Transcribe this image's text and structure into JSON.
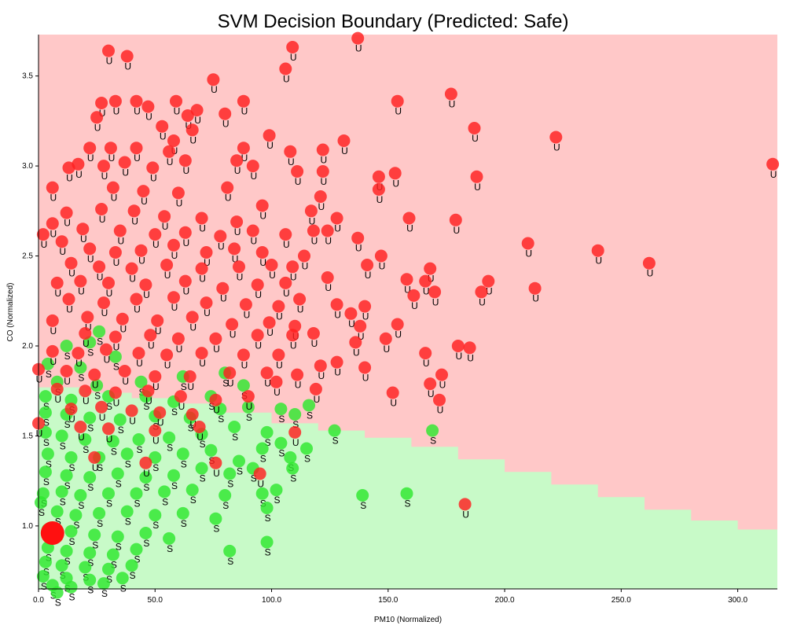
{
  "chart_data": {
    "type": "scatter",
    "title": "SVM Decision Boundary (Predicted: Safe)",
    "xlabel": "PM10 (Normalized)",
    "ylabel": "CO (Normalized)",
    "xlim": [
      0,
      317
    ],
    "ylim": [
      0.65,
      3.73
    ],
    "x_ticks": [
      "0.0",
      "50.0",
      "100.0",
      "150.0",
      "200.0",
      "250.0",
      "300.0"
    ],
    "x_tick_values": [
      0,
      50,
      100,
      150,
      200,
      250,
      300
    ],
    "y_ticks": [
      "1.0",
      "1.5",
      "2.0",
      "2.5",
      "3.0",
      "3.5"
    ],
    "y_tick_values": [
      1.0,
      1.5,
      2.0,
      2.5,
      3.0,
      3.5
    ],
    "grid": false,
    "regions": {
      "unsafe_color": "#ffc8c8",
      "safe_color": "#c8fac8",
      "boundary": [
        [
          0,
          1.77
        ],
        [
          20,
          1.74
        ],
        [
          40,
          1.71
        ],
        [
          60,
          1.68
        ],
        [
          80,
          1.63
        ],
        [
          100,
          1.57
        ],
        [
          120,
          1.53
        ],
        [
          140,
          1.49
        ],
        [
          160,
          1.44
        ],
        [
          180,
          1.37
        ],
        [
          200,
          1.3
        ],
        [
          220,
          1.23
        ],
        [
          240,
          1.16
        ],
        [
          260,
          1.09
        ],
        [
          280,
          1.03
        ],
        [
          300,
          0.98
        ],
        [
          317,
          0.98
        ]
      ]
    },
    "series": [
      {
        "label": "U",
        "color": "#ff2020",
        "points": [
          [
            137,
            3.71
          ],
          [
            30,
            3.64
          ],
          [
            38,
            3.61
          ],
          [
            109,
            3.66
          ],
          [
            106,
            3.54
          ],
          [
            75,
            3.48
          ],
          [
            59,
            3.36
          ],
          [
            42,
            3.36
          ],
          [
            27,
            3.35
          ],
          [
            33,
            3.36
          ],
          [
            88,
            3.36
          ],
          [
            47,
            3.33
          ],
          [
            68,
            3.31
          ],
          [
            80,
            3.29
          ],
          [
            25,
            3.27
          ],
          [
            64,
            3.28
          ],
          [
            53,
            3.22
          ],
          [
            66,
            3.2
          ],
          [
            58,
            3.14
          ],
          [
            99,
            3.17
          ],
          [
            131,
            3.14
          ],
          [
            177,
            3.4
          ],
          [
            154,
            3.36
          ],
          [
            187,
            3.21
          ],
          [
            222,
            3.16
          ],
          [
            22,
            3.1
          ],
          [
            31,
            3.1
          ],
          [
            42,
            3.1
          ],
          [
            56,
            3.08
          ],
          [
            108,
            3.08
          ],
          [
            122,
            3.09
          ],
          [
            88,
            3.1
          ],
          [
            13,
            2.99
          ],
          [
            17,
            3.01
          ],
          [
            28,
            3.0
          ],
          [
            37,
            3.02
          ],
          [
            49,
            2.99
          ],
          [
            63,
            3.03
          ],
          [
            85,
            3.03
          ],
          [
            92,
            3.0
          ],
          [
            111,
            2.97
          ],
          [
            122,
            2.97
          ],
          [
            146,
            2.94
          ],
          [
            153,
            2.96
          ],
          [
            188,
            2.94
          ],
          [
            315,
            3.01
          ],
          [
            6,
            2.88
          ],
          [
            32,
            2.88
          ],
          [
            45,
            2.86
          ],
          [
            60,
            2.85
          ],
          [
            81,
            2.88
          ],
          [
            96,
            2.78
          ],
          [
            121,
            2.83
          ],
          [
            146,
            2.87
          ],
          [
            12,
            2.74
          ],
          [
            27,
            2.76
          ],
          [
            41,
            2.75
          ],
          [
            54,
            2.72
          ],
          [
            70,
            2.71
          ],
          [
            85,
            2.69
          ],
          [
            117,
            2.75
          ],
          [
            128,
            2.71
          ],
          [
            159,
            2.71
          ],
          [
            179,
            2.7
          ],
          [
            6,
            2.68
          ],
          [
            19,
            2.65
          ],
          [
            35,
            2.64
          ],
          [
            50,
            2.62
          ],
          [
            63,
            2.63
          ],
          [
            78,
            2.61
          ],
          [
            92,
            2.64
          ],
          [
            106,
            2.62
          ],
          [
            118,
            2.64
          ],
          [
            124,
            2.64
          ],
          [
            137,
            2.6
          ],
          [
            2,
            2.62
          ],
          [
            10,
            2.58
          ],
          [
            22,
            2.54
          ],
          [
            33,
            2.52
          ],
          [
            44,
            2.53
          ],
          [
            58,
            2.56
          ],
          [
            72,
            2.52
          ],
          [
            84,
            2.54
          ],
          [
            96,
            2.52
          ],
          [
            114,
            2.5
          ],
          [
            147,
            2.5
          ],
          [
            210,
            2.57
          ],
          [
            240,
            2.53
          ],
          [
            262,
            2.46
          ],
          [
            14,
            2.46
          ],
          [
            26,
            2.44
          ],
          [
            40,
            2.43
          ],
          [
            55,
            2.45
          ],
          [
            70,
            2.43
          ],
          [
            86,
            2.44
          ],
          [
            100,
            2.45
          ],
          [
            109,
            2.44
          ],
          [
            141,
            2.45
          ],
          [
            168,
            2.43
          ],
          [
            8,
            2.35
          ],
          [
            18,
            2.36
          ],
          [
            30,
            2.35
          ],
          [
            46,
            2.34
          ],
          [
            63,
            2.36
          ],
          [
            79,
            2.32
          ],
          [
            94,
            2.34
          ],
          [
            106,
            2.35
          ],
          [
            124,
            2.38
          ],
          [
            158,
            2.37
          ],
          [
            166,
            2.36
          ],
          [
            193,
            2.36
          ],
          [
            13,
            2.26
          ],
          [
            28,
            2.24
          ],
          [
            42,
            2.26
          ],
          [
            58,
            2.27
          ],
          [
            72,
            2.24
          ],
          [
            89,
            2.23
          ],
          [
            103,
            2.22
          ],
          [
            112,
            2.26
          ],
          [
            128,
            2.23
          ],
          [
            161,
            2.28
          ],
          [
            170,
            2.3
          ],
          [
            190,
            2.3
          ],
          [
            213,
            2.32
          ],
          [
            6,
            2.14
          ],
          [
            21,
            2.16
          ],
          [
            36,
            2.15
          ],
          [
            51,
            2.14
          ],
          [
            66,
            2.16
          ],
          [
            83,
            2.12
          ],
          [
            99,
            2.13
          ],
          [
            110,
            2.11
          ],
          [
            134,
            2.18
          ],
          [
            140,
            2.22
          ],
          [
            154,
            2.12
          ],
          [
            20,
            2.07
          ],
          [
            33,
            2.05
          ],
          [
            48,
            2.06
          ],
          [
            60,
            2.04
          ],
          [
            76,
            2.04
          ],
          [
            94,
            2.06
          ],
          [
            109,
            2.06
          ],
          [
            118,
            2.07
          ],
          [
            138,
            2.11
          ],
          [
            149,
            2.04
          ],
          [
            6,
            1.97
          ],
          [
            17,
            1.96
          ],
          [
            29,
            1.98
          ],
          [
            43,
            1.96
          ],
          [
            55,
            1.95
          ],
          [
            70,
            1.96
          ],
          [
            88,
            1.95
          ],
          [
            103,
            1.95
          ],
          [
            128,
            1.91
          ],
          [
            136,
            2.02
          ],
          [
            166,
            1.96
          ],
          [
            180,
            2.0
          ],
          [
            185,
            1.99
          ],
          [
            0,
            1.87
          ],
          [
            12,
            1.86
          ],
          [
            24,
            1.84
          ],
          [
            37,
            1.86
          ],
          [
            50,
            1.83
          ],
          [
            65,
            1.83
          ],
          [
            82,
            1.85
          ],
          [
            98,
            1.85
          ],
          [
            111,
            1.84
          ],
          [
            121,
            1.89
          ],
          [
            140,
            1.88
          ],
          [
            173,
            1.84
          ],
          [
            8,
            1.76
          ],
          [
            20,
            1.75
          ],
          [
            33,
            1.74
          ],
          [
            47,
            1.75
          ],
          [
            61,
            1.72
          ],
          [
            76,
            1.7
          ],
          [
            90,
            1.72
          ],
          [
            102,
            1.8
          ],
          [
            119,
            1.76
          ],
          [
            152,
            1.74
          ],
          [
            168,
            1.79
          ],
          [
            172,
            1.7
          ],
          [
            14,
            1.65
          ],
          [
            27,
            1.66
          ],
          [
            40,
            1.64
          ],
          [
            52,
            1.63
          ],
          [
            66,
            1.62
          ],
          [
            0,
            1.57
          ],
          [
            18,
            1.55
          ],
          [
            30,
            1.54
          ],
          [
            50,
            1.53
          ],
          [
            69,
            1.55
          ],
          [
            110,
            1.52
          ],
          [
            24,
            1.38
          ],
          [
            46,
            1.35
          ],
          [
            76,
            1.35
          ],
          [
            95,
            1.29
          ],
          [
            183,
            1.12
          ]
        ]
      },
      {
        "label": "S",
        "color": "#2ee82e",
        "points": [
          [
            26,
            2.08
          ],
          [
            12,
            2.0
          ],
          [
            22,
            2.02
          ],
          [
            33,
            1.94
          ],
          [
            4,
            1.9
          ],
          [
            18,
            1.88
          ],
          [
            8,
            1.8
          ],
          [
            25,
            1.78
          ],
          [
            44,
            1.8
          ],
          [
            62,
            1.83
          ],
          [
            80,
            1.85
          ],
          [
            3,
            1.72
          ],
          [
            14,
            1.7
          ],
          [
            30,
            1.72
          ],
          [
            46,
            1.72
          ],
          [
            58,
            1.69
          ],
          [
            74,
            1.72
          ],
          [
            88,
            1.78
          ],
          [
            3,
            1.63
          ],
          [
            12,
            1.62
          ],
          [
            22,
            1.6
          ],
          [
            35,
            1.59
          ],
          [
            50,
            1.61
          ],
          [
            65,
            1.6
          ],
          [
            78,
            1.65
          ],
          [
            90,
            1.66
          ],
          [
            104,
            1.65
          ],
          [
            110,
            1.62
          ],
          [
            116,
            1.67
          ],
          [
            127,
            1.53
          ],
          [
            169,
            1.53
          ],
          [
            3,
            1.52
          ],
          [
            10,
            1.5
          ],
          [
            20,
            1.48
          ],
          [
            32,
            1.47
          ],
          [
            43,
            1.48
          ],
          [
            56,
            1.49
          ],
          [
            70,
            1.51
          ],
          [
            84,
            1.55
          ],
          [
            98,
            1.52
          ],
          [
            104,
            1.46
          ],
          [
            115,
            1.43
          ],
          [
            4,
            1.4
          ],
          [
            14,
            1.38
          ],
          [
            26,
            1.38
          ],
          [
            38,
            1.4
          ],
          [
            50,
            1.38
          ],
          [
            62,
            1.4
          ],
          [
            74,
            1.42
          ],
          [
            86,
            1.36
          ],
          [
            96,
            1.43
          ],
          [
            108,
            1.38
          ],
          [
            3,
            1.3
          ],
          [
            12,
            1.28
          ],
          [
            22,
            1.27
          ],
          [
            34,
            1.29
          ],
          [
            46,
            1.27
          ],
          [
            58,
            1.28
          ],
          [
            70,
            1.32
          ],
          [
            82,
            1.29
          ],
          [
            92,
            1.32
          ],
          [
            109,
            1.32
          ],
          [
            2,
            1.18
          ],
          [
            10,
            1.19
          ],
          [
            18,
            1.17
          ],
          [
            30,
            1.18
          ],
          [
            42,
            1.18
          ],
          [
            54,
            1.19
          ],
          [
            66,
            1.2
          ],
          [
            80,
            1.17
          ],
          [
            96,
            1.18
          ],
          [
            102,
            1.2
          ],
          [
            139,
            1.17
          ],
          [
            158,
            1.18
          ],
          [
            1,
            1.13
          ],
          [
            8,
            1.08
          ],
          [
            16,
            1.06
          ],
          [
            26,
            1.07
          ],
          [
            38,
            1.08
          ],
          [
            50,
            1.06
          ],
          [
            62,
            1.07
          ],
          [
            76,
            1.04
          ],
          [
            98,
            1.1
          ],
          [
            4,
            0.98
          ],
          [
            14,
            0.97
          ],
          [
            24,
            0.95
          ],
          [
            34,
            0.94
          ],
          [
            46,
            0.96
          ],
          [
            56,
            0.93
          ],
          [
            4,
            0.88
          ],
          [
            12,
            0.86
          ],
          [
            22,
            0.85
          ],
          [
            32,
            0.84
          ],
          [
            42,
            0.87
          ],
          [
            82,
            0.86
          ],
          [
            98,
            0.91
          ],
          [
            3,
            0.8
          ],
          [
            10,
            0.78
          ],
          [
            20,
            0.77
          ],
          [
            30,
            0.76
          ],
          [
            40,
            0.78
          ],
          [
            2,
            0.72
          ],
          [
            12,
            0.71
          ],
          [
            22,
            0.7
          ],
          [
            36,
            0.71
          ],
          [
            6,
            0.67
          ],
          [
            14,
            0.66
          ],
          [
            28,
            0.68
          ],
          [
            8,
            0.63
          ]
        ]
      }
    ],
    "highlight_point": {
      "x": 6,
      "y": 0.96,
      "color": "#ff1010"
    }
  }
}
